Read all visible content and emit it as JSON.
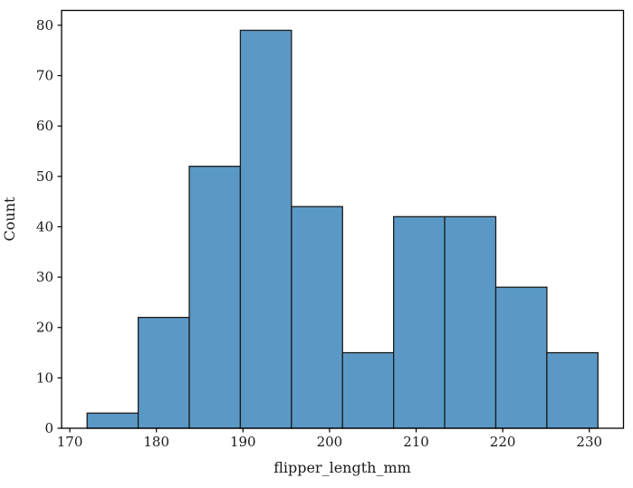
{
  "chart_data": {
    "type": "bar",
    "subtype": "histogram",
    "title": "",
    "xlabel": "flipper_length_mm",
    "ylabel": "Count",
    "bin_edges": [
      172.0,
      177.9,
      183.8,
      189.7,
      195.6,
      201.5,
      207.4,
      213.3,
      219.2,
      225.1,
      231.0
    ],
    "counts": [
      3,
      22,
      52,
      79,
      44,
      15,
      42,
      42,
      28,
      15
    ],
    "xticks": [
      170,
      180,
      190,
      200,
      210,
      220,
      230
    ],
    "yticks": [
      0,
      10,
      20,
      30,
      40,
      50,
      60,
      70,
      80
    ],
    "xlim": [
      169.05,
      233.95
    ],
    "ylim": [
      0,
      82.95
    ],
    "grid": false,
    "legend": null,
    "colors": {
      "bar_fill": "#5a99c6",
      "bar_edge": "#1c1c1c",
      "spine": "#000000",
      "tick": "#000000",
      "text": "#1a1a1a",
      "background": "#ffffff"
    }
  }
}
